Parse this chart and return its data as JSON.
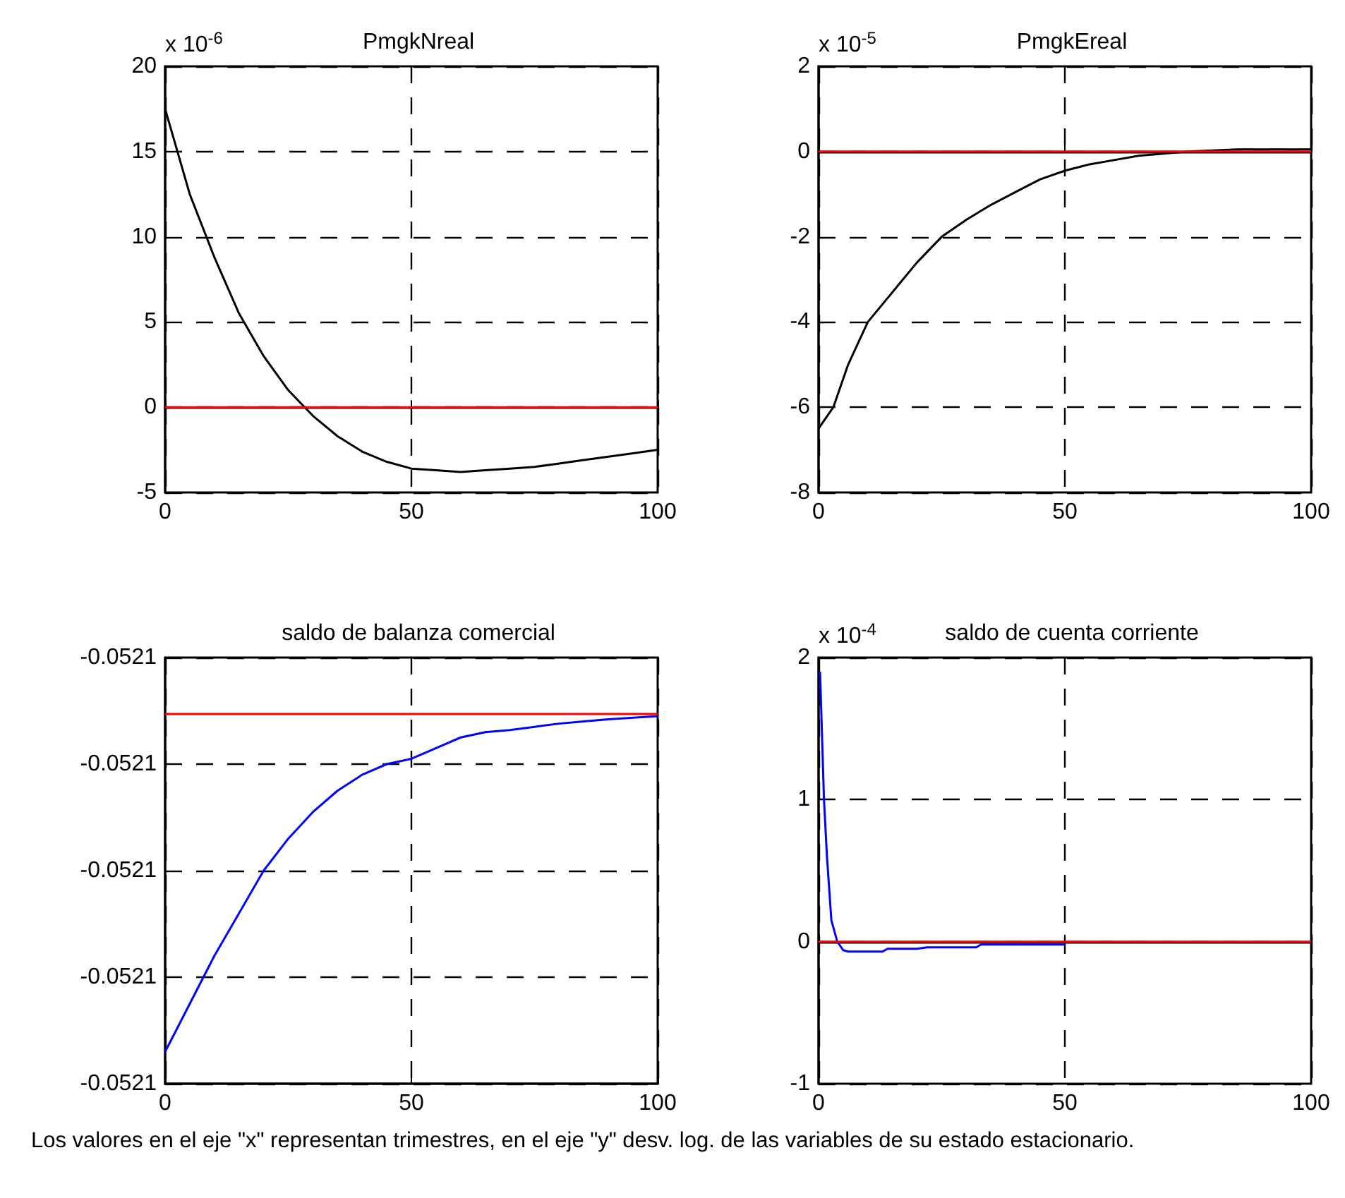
{
  "chart_data": [
    {
      "type": "line",
      "title": "PmgkNreal",
      "ylabel": "x 10$^{-6}$",
      "series": [
        {
          "color": "#000000",
          "x": [
            0,
            5,
            10,
            15,
            20,
            25,
            30,
            35,
            40,
            45,
            50,
            55,
            60,
            65,
            70,
            75,
            80,
            85,
            90,
            95,
            100
          ],
          "values": [
            17.5,
            12.5,
            8.8,
            5.5,
            3,
            1,
            -0.5,
            -1.7,
            -2.6,
            -3.2,
            -3.6,
            -3.7,
            -3.8,
            -3.7,
            -3.6,
            -3.5,
            -3.3,
            -3.1,
            -2.9,
            -2.7,
            -2.5
          ]
        }
      ],
      "xlim": [
        0,
        100
      ],
      "xticks": [
        0,
        50,
        100
      ],
      "ylim": [
        -5,
        20
      ],
      "yticks": [
        -5,
        0,
        5,
        10,
        15,
        20
      ],
      "grid": true,
      "ref_lines": [
        {
          "axis": "y",
          "value": 0,
          "color": "#ff0000"
        }
      ]
    },
    {
      "type": "line",
      "title": "PmgkEreal",
      "ylabel": "x 10$^{-5}$",
      "series": [
        {
          "color": "#000000",
          "x": [
            0,
            3,
            6,
            10,
            15,
            20,
            25,
            30,
            35,
            40,
            45,
            50,
            55,
            60,
            65,
            70,
            75,
            85,
            100
          ],
          "values": [
            -6.5,
            -6,
            -5,
            -4,
            -3.3,
            -2.6,
            -2,
            -1.6,
            -1.25,
            -0.95,
            -0.65,
            -0.45,
            -0.3,
            -0.2,
            -0.1,
            -0.05,
            0,
            0.05,
            0.05
          ]
        }
      ],
      "xlim": [
        0,
        100
      ],
      "xticks": [
        0,
        50,
        100
      ],
      "ylim": [
        -8,
        2
      ],
      "yticks": [
        -8,
        -6,
        -4,
        -2,
        0,
        2
      ],
      "grid": true,
      "ref_lines": [
        {
          "axis": "y",
          "value": 0,
          "color": "#ff0000"
        }
      ]
    },
    {
      "type": "line",
      "title": "saldo de balanza comercial",
      "series": [
        {
          "color": "#0000ff",
          "x": [
            0,
            5,
            10,
            15,
            20,
            25,
            30,
            35,
            40,
            45,
            50,
            55,
            60,
            65,
            70,
            75,
            80,
            85,
            90,
            100
          ],
          "values": [
            -0.052117,
            -0.0521125,
            -0.052108,
            -0.052104,
            -0.0521,
            -0.052097,
            -0.0520945,
            -0.0520925,
            -0.052091,
            -0.05209,
            -0.0520895,
            -0.0520885,
            -0.0520875,
            -0.052087,
            -0.0520868,
            -0.0520865,
            -0.0520862,
            -0.052086,
            -0.0520858,
            -0.0520855
          ]
        }
      ],
      "xlim": [
        0,
        100
      ],
      "xticks": [
        0,
        50,
        100
      ],
      "ylim": [
        -0.05212,
        -0.05208
      ],
      "yticks": [
        {
          "value": -0.05212,
          "label": "-0.0521"
        },
        {
          "value": -0.05211,
          "label": "-0.0521"
        },
        {
          "value": -0.0521,
          "label": "-0.0521"
        },
        {
          "value": -0.05209,
          "label": "-0.0521"
        },
        {
          "value": -0.05208,
          "label": "-0.0521"
        }
      ],
      "grid": true,
      "ref_lines": [
        {
          "axis": "y",
          "value": -0.0520853,
          "color": "#ff0000"
        }
      ]
    },
    {
      "type": "line",
      "title": "saldo de cuenta corriente",
      "ylabel": "x 10$^{-4}$",
      "series": [
        {
          "color": "#0000ff",
          "x": [
            0.3,
            1.1,
            1.7,
            2.6,
            3.8,
            5,
            6,
            13,
            14,
            20,
            22,
            32,
            33,
            50
          ],
          "values": [
            1.9,
            1,
            0.6,
            0.15,
            0,
            -0.06,
            -0.07,
            -0.07,
            -0.05,
            -0.05,
            -0.04,
            -0.04,
            -0.02,
            -0.02
          ]
        }
      ],
      "xlim": [
        0,
        100
      ],
      "xticks": [
        0,
        50,
        100
      ],
      "ylim": [
        -1,
        2
      ],
      "yticks": [
        -1,
        0,
        1,
        2
      ],
      "grid": true,
      "ref_lines": [
        {
          "axis": "y",
          "value": 0,
          "color": "#ff0000"
        }
      ],
      "annotations": [
        "Los valores en el eje \"x\" representan trimestres, en el eje \"y\" desv. log. de las variables de su estado estacionario."
      ]
    }
  ]
}
